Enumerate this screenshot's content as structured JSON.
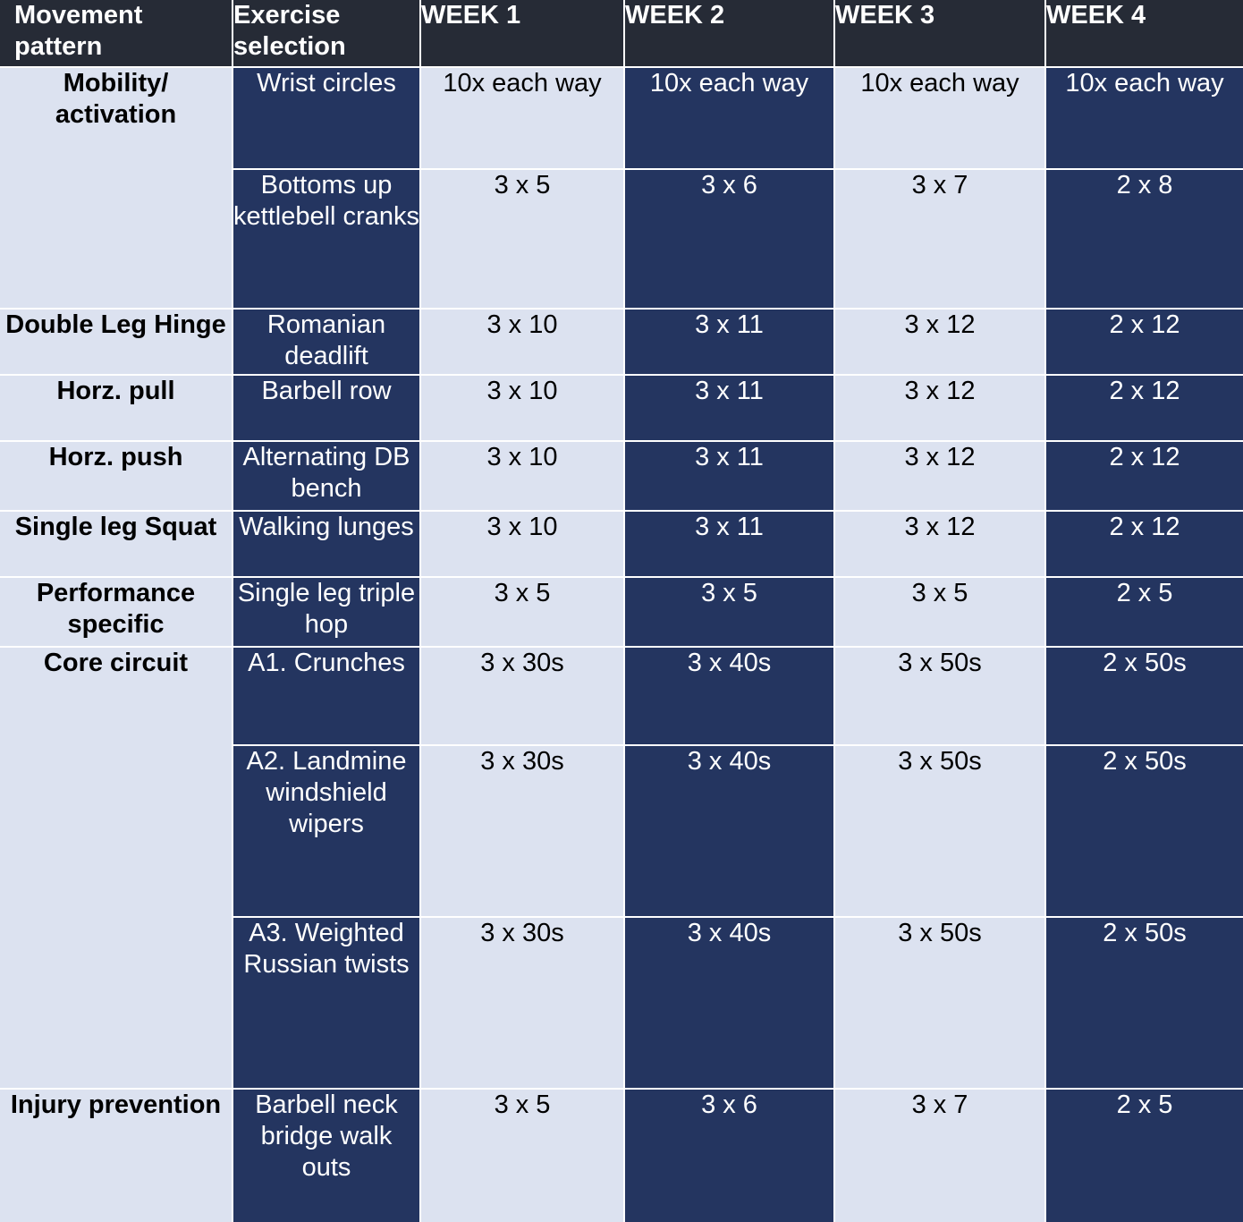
{
  "headers": {
    "movement_pattern": "Movement pattern",
    "exercise_selection": "Exercise selection",
    "week1": "WEEK 1",
    "week2": "WEEK 2",
    "week3": "WEEK 3",
    "week4": "WEEK 4"
  },
  "patterns": {
    "mobility": "Mobility/ activation",
    "double_leg_hinge": "Double Leg Hinge",
    "horz_pull": "Horz. pull",
    "horz_push": "Horz. push",
    "single_leg_squat": "Single leg Squat",
    "performance_specific": "Performance specific",
    "core_circuit": "Core circuit",
    "injury_prevention": "Injury prevention"
  },
  "rows": [
    {
      "exercise": "Wrist circles",
      "w1": "10x each way",
      "w2": "10x each way",
      "w3": "10x each way",
      "w4": "10x each way"
    },
    {
      "exercise": "Bottoms up kettlebell cranks",
      "w1": "3 x 5",
      "w2": "3 x 6",
      "w3": "3 x 7",
      "w4": "2 x 8"
    },
    {
      "exercise": "Romanian deadlift",
      "w1": "3 x 10",
      "w2": "3 x 11",
      "w3": "3 x 12",
      "w4": "2 x 12"
    },
    {
      "exercise": "Barbell row",
      "w1": "3 x 10",
      "w2": "3 x 11",
      "w3": "3 x 12",
      "w4": "2 x 12"
    },
    {
      "exercise": "Alternating DB bench",
      "w1": "3 x 10",
      "w2": "3 x 11",
      "w3": "3 x 12",
      "w4": "2 x 12"
    },
    {
      "exercise": "Walking lunges",
      "w1": "3 x 10",
      "w2": "3 x 11",
      "w3": "3 x 12",
      "w4": "2 x 12"
    },
    {
      "exercise": "Single leg triple hop",
      "w1": "3 x 5",
      "w2": "3 x 5",
      "w3": "3 x 5",
      "w4": "2 x 5"
    },
    {
      "exercise": "A1. Crunches",
      "w1": "3 x 30s",
      "w2": "3 x 40s",
      "w3": "3 x 50s",
      "w4": "2 x 50s"
    },
    {
      "exercise": "A2. Landmine windshield wipers",
      "w1": "3 x 30s",
      "w2": "3 x 40s",
      "w3": "3 x 50s",
      "w4": "2 x 50s"
    },
    {
      "exercise": "A3. Weighted Russian twists",
      "w1": "3 x 30s",
      "w2": "3 x 40s",
      "w3": "3 x 50s",
      "w4": "2 x 50s"
    },
    {
      "exercise": "Barbell neck bridge walk outs",
      "w1": "3 x 5",
      "w2": "3 x 6",
      "w3": "3 x 7",
      "w4": "2 x 5"
    }
  ]
}
